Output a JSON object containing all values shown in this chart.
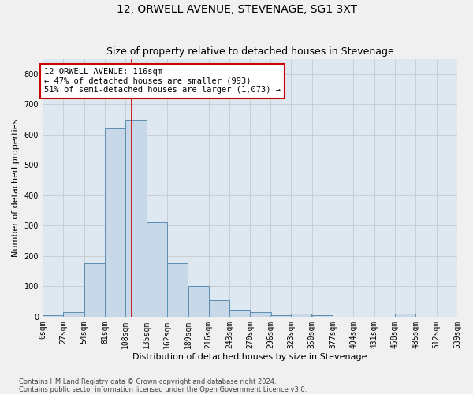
{
  "title": "12, ORWELL AVENUE, STEVENAGE, SG1 3XT",
  "subtitle": "Size of property relative to detached houses in Stevenage",
  "xlabel": "Distribution of detached houses by size in Stevenage",
  "ylabel": "Number of detached properties",
  "bar_values": [
    5,
    15,
    175,
    620,
    650,
    310,
    175,
    100,
    55,
    20,
    15,
    5,
    10,
    5,
    0,
    0,
    0,
    10,
    0,
    0
  ],
  "bin_edges": [
    0,
    27,
    54,
    81,
    108,
    135,
    162,
    189,
    216,
    243,
    270,
    296,
    323,
    350,
    377,
    404,
    431,
    458,
    485,
    512,
    539
  ],
  "tick_labels": [
    "0sqm",
    "27sqm",
    "54sqm",
    "81sqm",
    "108sqm",
    "135sqm",
    "162sqm",
    "189sqm",
    "216sqm",
    "243sqm",
    "270sqm",
    "296sqm",
    "323sqm",
    "350sqm",
    "377sqm",
    "404sqm",
    "431sqm",
    "458sqm",
    "485sqm",
    "512sqm",
    "539sqm"
  ],
  "bar_color": "#c8d8e8",
  "bar_edge_color": "#5b8db0",
  "red_line_x": 116,
  "annotation_line1": "12 ORWELL AVENUE: 116sqm",
  "annotation_line2": "← 47% of detached houses are smaller (993)",
  "annotation_line3": "51% of semi-detached houses are larger (1,073) →",
  "annotation_box_color": "#ffffff",
  "annotation_box_edge_color": "#cc0000",
  "ylim": [
    0,
    850
  ],
  "yticks": [
    0,
    100,
    200,
    300,
    400,
    500,
    600,
    700,
    800
  ],
  "grid_color": "#c8c8d0",
  "bg_color": "#dde8f0",
  "fig_bg_color": "#f0f0f0",
  "footer_line1": "Contains HM Land Registry data © Crown copyright and database right 2024.",
  "footer_line2": "Contains public sector information licensed under the Open Government Licence v3.0.",
  "title_fontsize": 10,
  "subtitle_fontsize": 9,
  "axis_label_fontsize": 8,
  "tick_fontsize": 7,
  "annotation_fontsize": 7.5,
  "footer_fontsize": 6
}
